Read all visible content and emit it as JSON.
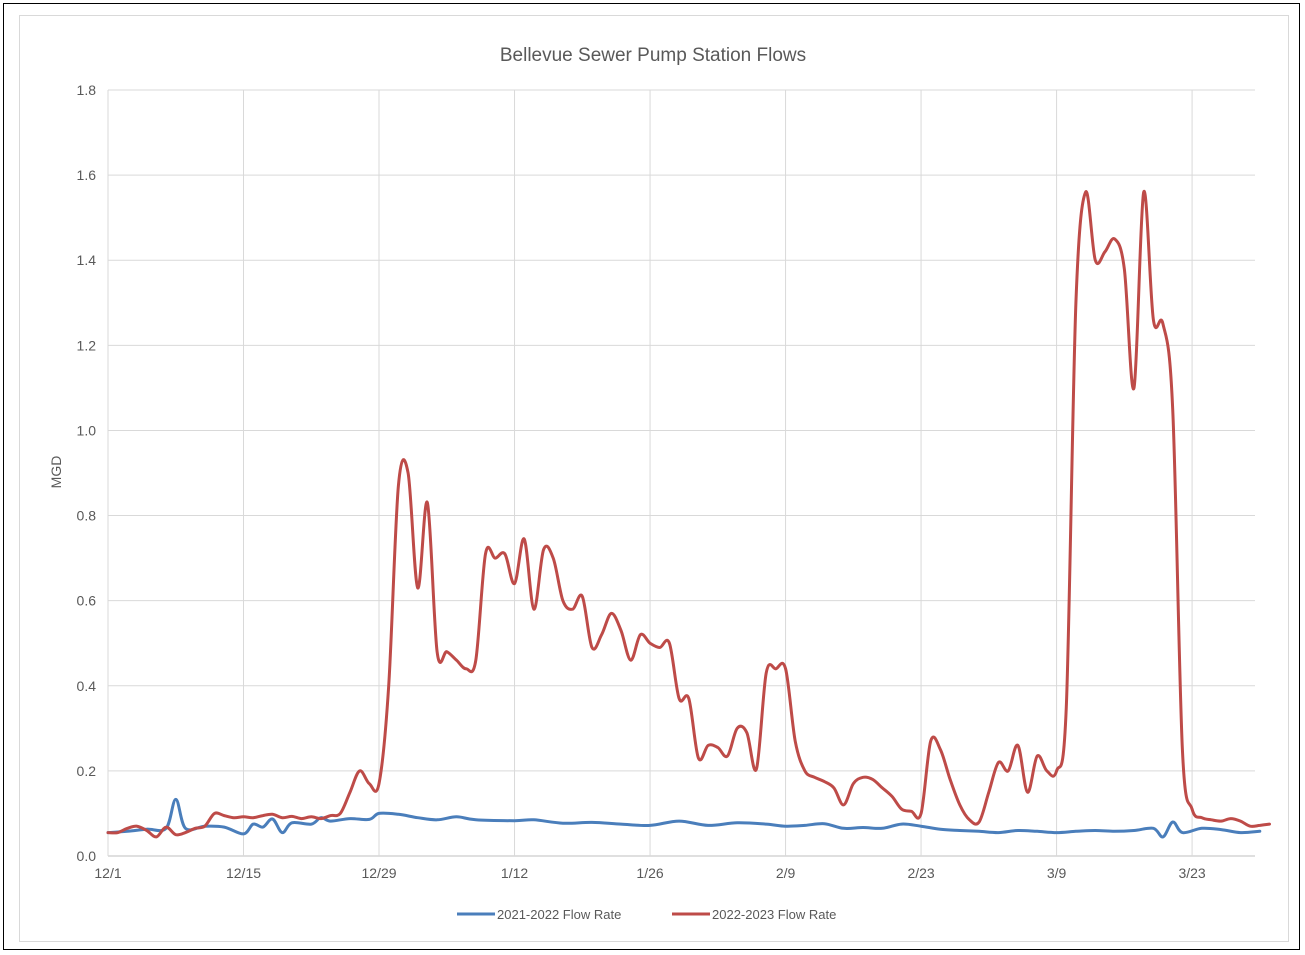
{
  "chart_data": {
    "type": "line",
    "title": "Bellevue Sewer Pump Station Flows",
    "ylabel": "MGD",
    "xlabel": "",
    "ylim": [
      0,
      1.8
    ],
    "yticks": [
      "0.0",
      "0.2",
      "0.4",
      "0.6",
      "0.8",
      "1.0",
      "1.2",
      "1.4",
      "1.6",
      "1.8"
    ],
    "ytick_values": [
      0,
      0.2,
      0.4,
      0.6,
      0.8,
      1.0,
      1.2,
      1.4,
      1.6,
      1.8
    ],
    "xticks": [
      "12/1",
      "12/15",
      "12/29",
      "1/12",
      "1/26",
      "2/9",
      "2/23",
      "3/9",
      "3/23"
    ],
    "xtick_days": [
      0,
      14,
      28,
      42,
      56,
      70,
      84,
      98,
      112
    ],
    "xlim_days": [
      0,
      119
    ],
    "grid": true,
    "legend_position": "bottom",
    "series": [
      {
        "name": "2021-2022 Flow Rate",
        "color": "#4a7ebb",
        "points": [
          [
            0,
            0.055
          ],
          [
            2,
            0.058
          ],
          [
            4,
            0.063
          ],
          [
            6,
            0.065
          ],
          [
            7,
            0.133
          ],
          [
            8,
            0.065
          ],
          [
            10,
            0.07
          ],
          [
            12,
            0.068
          ],
          [
            14,
            0.052
          ],
          [
            15,
            0.075
          ],
          [
            16,
            0.068
          ],
          [
            17,
            0.087
          ],
          [
            18,
            0.055
          ],
          [
            19,
            0.078
          ],
          [
            21,
            0.075
          ],
          [
            22,
            0.09
          ],
          [
            23,
            0.082
          ],
          [
            25,
            0.088
          ],
          [
            27,
            0.086
          ],
          [
            28,
            0.1
          ],
          [
            30,
            0.098
          ],
          [
            32,
            0.09
          ],
          [
            34,
            0.085
          ],
          [
            36,
            0.092
          ],
          [
            38,
            0.085
          ],
          [
            42,
            0.083
          ],
          [
            44,
            0.085
          ],
          [
            47,
            0.077
          ],
          [
            50,
            0.079
          ],
          [
            53,
            0.075
          ],
          [
            56,
            0.072
          ],
          [
            59,
            0.082
          ],
          [
            62,
            0.072
          ],
          [
            65,
            0.078
          ],
          [
            68,
            0.075
          ],
          [
            70,
            0.07
          ],
          [
            72,
            0.072
          ],
          [
            74,
            0.076
          ],
          [
            76,
            0.065
          ],
          [
            78,
            0.067
          ],
          [
            80,
            0.065
          ],
          [
            82,
            0.075
          ],
          [
            84,
            0.07
          ],
          [
            86,
            0.063
          ],
          [
            88,
            0.06
          ],
          [
            90,
            0.058
          ],
          [
            92,
            0.055
          ],
          [
            94,
            0.06
          ],
          [
            96,
            0.058
          ],
          [
            98,
            0.055
          ],
          [
            100,
            0.058
          ],
          [
            102,
            0.06
          ],
          [
            104,
            0.058
          ],
          [
            106,
            0.06
          ],
          [
            108,
            0.065
          ],
          [
            109,
            0.045
          ],
          [
            110,
            0.08
          ],
          [
            111,
            0.055
          ],
          [
            113,
            0.065
          ],
          [
            115,
            0.062
          ],
          [
            117,
            0.055
          ],
          [
            119,
            0.058
          ]
        ]
      },
      {
        "name": "2022-2023 Flow Rate",
        "color": "#be4b48",
        "points": [
          [
            0,
            0.055
          ],
          [
            1,
            0.055
          ],
          [
            2,
            0.065
          ],
          [
            3,
            0.07
          ],
          [
            4,
            0.06
          ],
          [
            5,
            0.045
          ],
          [
            6,
            0.068
          ],
          [
            7,
            0.05
          ],
          [
            8,
            0.055
          ],
          [
            9,
            0.065
          ],
          [
            10,
            0.07
          ],
          [
            11,
            0.1
          ],
          [
            12,
            0.095
          ],
          [
            13,
            0.09
          ],
          [
            14,
            0.092
          ],
          [
            15,
            0.09
          ],
          [
            16,
            0.095
          ],
          [
            17,
            0.098
          ],
          [
            18,
            0.09
          ],
          [
            19,
            0.093
          ],
          [
            20,
            0.088
          ],
          [
            21,
            0.092
          ],
          [
            22,
            0.088
          ],
          [
            23,
            0.095
          ],
          [
            24,
            0.1
          ],
          [
            25,
            0.15
          ],
          [
            26,
            0.2
          ],
          [
            27,
            0.17
          ],
          [
            28,
            0.17
          ],
          [
            29,
            0.4
          ],
          [
            30,
            0.87
          ],
          [
            31,
            0.9
          ],
          [
            32,
            0.63
          ],
          [
            33,
            0.83
          ],
          [
            34,
            0.48
          ],
          [
            35,
            0.48
          ],
          [
            36,
            0.46
          ],
          [
            37,
            0.44
          ],
          [
            38,
            0.46
          ],
          [
            39,
            0.71
          ],
          [
            40,
            0.7
          ],
          [
            41,
            0.71
          ],
          [
            42,
            0.64
          ],
          [
            43,
            0.745
          ],
          [
            44,
            0.58
          ],
          [
            45,
            0.72
          ],
          [
            46,
            0.7
          ],
          [
            47,
            0.6
          ],
          [
            48,
            0.58
          ],
          [
            49,
            0.61
          ],
          [
            50,
            0.49
          ],
          [
            51,
            0.52
          ],
          [
            52,
            0.57
          ],
          [
            53,
            0.53
          ],
          [
            54,
            0.46
          ],
          [
            55,
            0.52
          ],
          [
            56,
            0.5
          ],
          [
            57,
            0.49
          ],
          [
            58,
            0.5
          ],
          [
            59,
            0.37
          ],
          [
            60,
            0.37
          ],
          [
            61,
            0.23
          ],
          [
            62,
            0.26
          ],
          [
            63,
            0.255
          ],
          [
            64,
            0.235
          ],
          [
            65,
            0.3
          ],
          [
            66,
            0.29
          ],
          [
            67,
            0.205
          ],
          [
            68,
            0.43
          ],
          [
            69,
            0.44
          ],
          [
            70,
            0.44
          ],
          [
            71,
            0.27
          ],
          [
            72,
            0.2
          ],
          [
            73,
            0.185
          ],
          [
            74,
            0.175
          ],
          [
            75,
            0.16
          ],
          [
            76,
            0.12
          ],
          [
            77,
            0.17
          ],
          [
            78,
            0.185
          ],
          [
            79,
            0.18
          ],
          [
            80,
            0.16
          ],
          [
            81,
            0.14
          ],
          [
            82,
            0.11
          ],
          [
            83,
            0.105
          ],
          [
            84,
            0.1
          ],
          [
            85,
            0.27
          ],
          [
            86,
            0.25
          ],
          [
            87,
            0.18
          ],
          [
            88,
            0.12
          ],
          [
            89,
            0.085
          ],
          [
            90,
            0.08
          ],
          [
            91,
            0.15
          ],
          [
            92,
            0.22
          ],
          [
            93,
            0.2
          ],
          [
            94,
            0.26
          ],
          [
            95,
            0.15
          ],
          [
            96,
            0.235
          ],
          [
            97,
            0.2
          ],
          [
            98,
            0.2
          ],
          [
            99,
            0.35
          ],
          [
            100,
            1.3
          ],
          [
            101,
            1.56
          ],
          [
            102,
            1.4
          ],
          [
            103,
            1.42
          ],
          [
            104,
            1.45
          ],
          [
            105,
            1.38
          ],
          [
            106,
            1.1
          ],
          [
            107,
            1.56
          ],
          [
            108,
            1.26
          ],
          [
            109,
            1.25
          ],
          [
            110,
            1.05
          ],
          [
            111,
            0.25
          ],
          [
            112,
            0.11
          ],
          [
            113,
            0.09
          ],
          [
            114,
            0.085
          ],
          [
            115,
            0.082
          ],
          [
            116,
            0.088
          ],
          [
            117,
            0.082
          ],
          [
            118,
            0.07
          ],
          [
            119,
            0.072
          ],
          [
            120,
            0.075
          ]
        ]
      }
    ]
  }
}
